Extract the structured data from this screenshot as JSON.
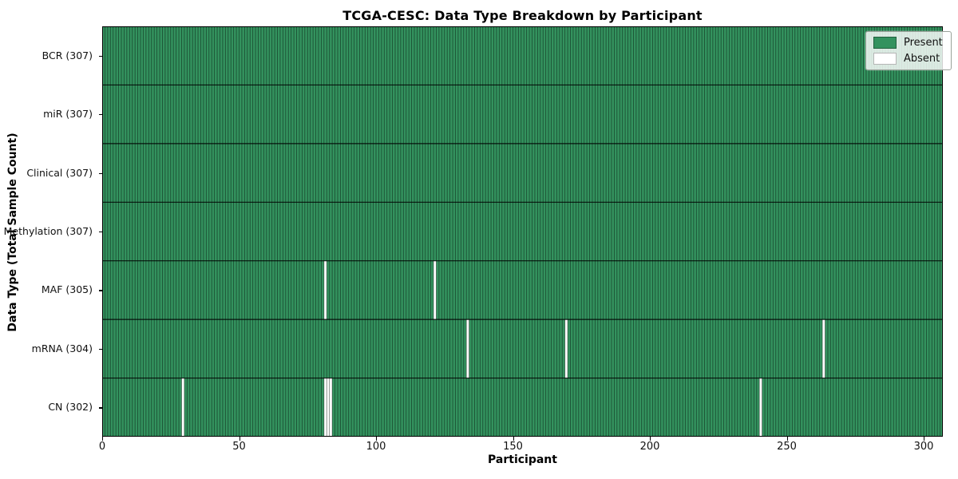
{
  "chart_data": {
    "type": "heatmap",
    "title": "TCGA-CESC: Data Type Breakdown by Participant",
    "xlabel": "Participant",
    "ylabel": "Data Type (Total Sample Count)",
    "n_participants": 307,
    "x_ticks": [
      0,
      50,
      100,
      150,
      200,
      250,
      300
    ],
    "x_range": [
      0,
      306
    ],
    "grid": "cell-borders",
    "legend_position": "upper right",
    "colors": {
      "present": "#33925e",
      "absent": "#ffffff",
      "cell_border": "rgba(0,0,0,0.5)",
      "row_border": "rgba(0,0,0,0.85)",
      "spine": "#000000"
    },
    "legend": [
      {
        "label": "Present",
        "color": "#33925e"
      },
      {
        "label": "Absent",
        "color": "#ffffff"
      }
    ],
    "rows": [
      {
        "label": "BCR (307)",
        "data_type": "BCR",
        "present_count": 307,
        "absent_participants": []
      },
      {
        "label": "miR (307)",
        "data_type": "miR",
        "present_count": 307,
        "absent_participants": []
      },
      {
        "label": "Clinical (307)",
        "data_type": "Clinical",
        "present_count": 307,
        "absent_participants": []
      },
      {
        "label": "Methylation (307)",
        "data_type": "Methylation",
        "present_count": 307,
        "absent_participants": []
      },
      {
        "label": "MAF (305)",
        "data_type": "MAF",
        "present_count": 305,
        "absent_participants": [
          81,
          121
        ]
      },
      {
        "label": "mRNA (304)",
        "data_type": "mRNA",
        "present_count": 304,
        "absent_participants": [
          133,
          169,
          263
        ]
      },
      {
        "label": "CN (302)",
        "data_type": "CN",
        "present_count": 302,
        "absent_participants": [
          29,
          81,
          82,
          83,
          240
        ]
      }
    ]
  }
}
